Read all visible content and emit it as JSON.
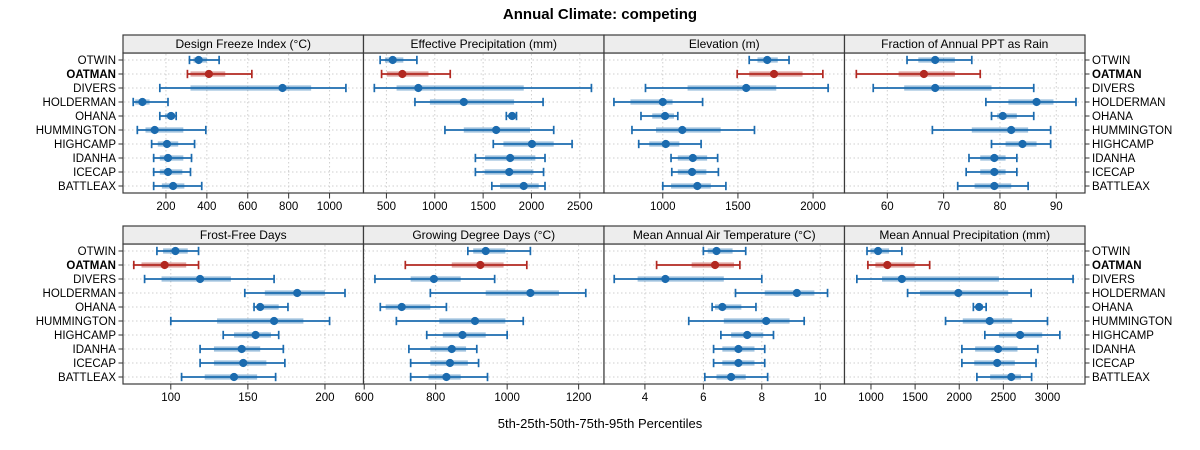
{
  "title": "Annual Climate: competing",
  "xlabel": "5th-25th-50th-75th-95th Percentiles",
  "stations": [
    "OTWIN",
    "OATMAN",
    "DIVERS",
    "HOLDERMAN",
    "OHANA",
    "HUMMINGTON",
    "HIGHCAMP",
    "IDANHA",
    "ICECAP",
    "BATTLEAX"
  ],
  "highlight_station": "OATMAN",
  "colors": {
    "series": "#1b6baf",
    "highlight": "#b22821",
    "band_opacity": 0.42,
    "grid": "#cfcfcf",
    "border": "#3b3b3b",
    "strip_bg": "#ededed",
    "tick": "#333333",
    "text": "#000000"
  },
  "chart_data": {
    "type": "dot-whisker-trellis",
    "percentiles": [
      5,
      25,
      50,
      75,
      95
    ],
    "legend_note": "values per station are [5th,25th,50th,75th,95th] percentiles",
    "grid": "dotted",
    "panels": [
      {
        "title": "Design Freeze Index (°C)",
        "row": 0,
        "col": 0,
        "xlim": [
          -10,
          1166
        ],
        "ticks": [
          200,
          400,
          600,
          800,
          1000
        ],
        "values": [
          [
            315,
            335,
            360,
            400,
            460
          ],
          [
            305,
            320,
            410,
            490,
            620
          ],
          [
            170,
            320,
            770,
            910,
            1080
          ],
          [
            40,
            50,
            85,
            120,
            210
          ],
          [
            170,
            195,
            225,
            245,
            250
          ],
          [
            60,
            100,
            145,
            285,
            395
          ],
          [
            130,
            160,
            205,
            260,
            340
          ],
          [
            140,
            170,
            210,
            285,
            325
          ],
          [
            140,
            170,
            210,
            280,
            320
          ],
          [
            140,
            180,
            235,
            290,
            375
          ]
        ]
      },
      {
        "title": "Effective Precipitation (mm)",
        "row": 0,
        "col": 1,
        "xlim": [
          263,
          2750
        ],
        "ticks": [
          500,
          1000,
          1500,
          2000,
          2500
        ],
        "values": [
          [
            435,
            485,
            565,
            675,
            815
          ],
          [
            450,
            505,
            665,
            935,
            1160
          ],
          [
            375,
            605,
            830,
            1920,
            2620
          ],
          [
            795,
            950,
            1300,
            1820,
            2120
          ],
          [
            1740,
            1770,
            1800,
            1825,
            1845
          ],
          [
            1105,
            1300,
            1635,
            1985,
            2230
          ],
          [
            1605,
            1710,
            2005,
            2230,
            2420
          ],
          [
            1420,
            1520,
            1780,
            2040,
            2140
          ],
          [
            1420,
            1515,
            1770,
            2020,
            2125
          ],
          [
            1590,
            1675,
            1920,
            2075,
            2140
          ]
        ]
      },
      {
        "title": "Elevation (m)",
        "row": 0,
        "col": 2,
        "xlim": [
          609,
          2209
        ],
        "ticks": [
          1000,
          1500,
          2000
        ],
        "values": [
          [
            1575,
            1630,
            1695,
            1765,
            1840
          ],
          [
            1495,
            1575,
            1740,
            1930,
            2065
          ],
          [
            885,
            1165,
            1555,
            1755,
            2100
          ],
          [
            675,
            785,
            1000,
            1065,
            1265
          ],
          [
            855,
            930,
            1015,
            1075,
            1100
          ],
          [
            795,
            955,
            1130,
            1385,
            1610
          ],
          [
            840,
            910,
            1020,
            1110,
            1255
          ],
          [
            1055,
            1100,
            1200,
            1295,
            1365
          ],
          [
            1060,
            1100,
            1195,
            1290,
            1370
          ],
          [
            1000,
            1055,
            1230,
            1320,
            1420
          ]
        ]
      },
      {
        "title": "Fraction of Annual PPT as Rain",
        "row": 0,
        "col": 3,
        "xlim": [
          52.4,
          95.1
        ],
        "ticks": [
          60,
          70,
          80,
          90
        ],
        "values": [
          [
            63.5,
            65.5,
            68.5,
            72,
            75
          ],
          [
            54.5,
            62,
            66.5,
            72,
            76.5
          ],
          [
            57.5,
            63,
            68.5,
            78.5,
            86
          ],
          [
            77.5,
            81.5,
            86.5,
            89.5,
            93.5
          ],
          [
            78.5,
            79.5,
            80.5,
            83,
            86
          ],
          [
            68,
            75,
            82,
            85,
            89
          ],
          [
            78.5,
            81,
            84,
            86.5,
            89
          ],
          [
            74.5,
            76.5,
            79,
            81,
            83
          ],
          [
            74,
            76.5,
            79,
            81,
            83
          ],
          [
            72.5,
            75.5,
            79,
            82,
            85
          ]
        ]
      },
      {
        "title": "Frost-Free Days",
        "row": 1,
        "col": 0,
        "xlim": [
          69,
          225
        ],
        "ticks": [
          100,
          150,
          200
        ],
        "values": [
          [
            91,
            95,
            103,
            111,
            118
          ],
          [
            76,
            81,
            96,
            110,
            118
          ],
          [
            83,
            94,
            119,
            139,
            167
          ],
          [
            148,
            161,
            182,
            200,
            213
          ],
          [
            154,
            156,
            158,
            170,
            176
          ],
          [
            100,
            130,
            167,
            186,
            203
          ],
          [
            134,
            141,
            155,
            165,
            170
          ],
          [
            119,
            128,
            146,
            158,
            173
          ],
          [
            119,
            128,
            147,
            162,
            174
          ],
          [
            107,
            122,
            141,
            156,
            168
          ]
        ]
      },
      {
        "title": "Growing Degree Days (°C)",
        "row": 1,
        "col": 1,
        "xlim": [
          598,
          1271
        ],
        "ticks": [
          600,
          800,
          1000,
          1200
        ],
        "values": [
          [
            890,
            905,
            940,
            995,
            1065
          ],
          [
            715,
            845,
            925,
            990,
            1055
          ],
          [
            630,
            730,
            795,
            870,
            965
          ],
          [
            785,
            940,
            1065,
            1145,
            1220
          ],
          [
            645,
            660,
            705,
            785,
            830
          ],
          [
            690,
            810,
            910,
            995,
            1045
          ],
          [
            775,
            820,
            875,
            940,
            1000
          ],
          [
            725,
            785,
            845,
            885,
            915
          ],
          [
            730,
            785,
            840,
            890,
            920
          ],
          [
            730,
            780,
            830,
            870,
            945
          ]
        ]
      },
      {
        "title": "Mean Annual Air Temperature (°C)",
        "row": 1,
        "col": 2,
        "xlim": [
          2.6,
          10.83
        ],
        "ticks": [
          4,
          6,
          8,
          10
        ],
        "values": [
          [
            6.0,
            6.15,
            6.45,
            7.0,
            7.45
          ],
          [
            4.4,
            5.6,
            6.4,
            7.05,
            7.25
          ],
          [
            2.95,
            3.75,
            4.7,
            6.7,
            8.0
          ],
          [
            7.1,
            8.1,
            9.2,
            9.8,
            10.25
          ],
          [
            6.3,
            6.4,
            6.65,
            7.3,
            7.8
          ],
          [
            5.5,
            6.7,
            8.15,
            8.95,
            9.45
          ],
          [
            6.6,
            6.95,
            7.5,
            8.05,
            8.4
          ],
          [
            6.35,
            6.65,
            7.2,
            7.75,
            8.1
          ],
          [
            6.35,
            6.65,
            7.2,
            7.75,
            8.1
          ],
          [
            6.05,
            6.45,
            6.95,
            7.45,
            8.2
          ]
        ]
      },
      {
        "title": "Mean Annual Precipitation (mm)",
        "row": 1,
        "col": 3,
        "xlim": [
          700,
          3425
        ],
        "ticks": [
          1000,
          1500,
          2000,
          2500,
          3000
        ],
        "values": [
          [
            955,
            995,
            1080,
            1205,
            1350
          ],
          [
            965,
            1050,
            1185,
            1495,
            1665
          ],
          [
            840,
            1125,
            1350,
            2450,
            3290
          ],
          [
            1415,
            1555,
            1990,
            2555,
            2815
          ],
          [
            2160,
            2190,
            2225,
            2270,
            2305
          ],
          [
            1845,
            2040,
            2345,
            2600,
            3000
          ],
          [
            2290,
            2450,
            2690,
            2940,
            3140
          ],
          [
            2030,
            2180,
            2440,
            2660,
            2890
          ],
          [
            2030,
            2170,
            2430,
            2630,
            2870
          ],
          [
            2200,
            2350,
            2590,
            2700,
            2820
          ]
        ]
      }
    ]
  }
}
